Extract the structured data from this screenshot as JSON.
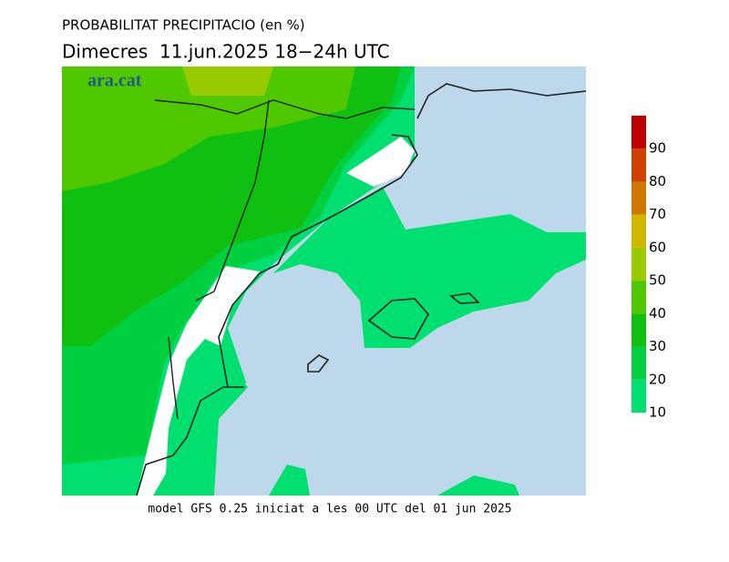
{
  "header": {
    "title": "PROBABILITAT PRECIPITACIO (en %)",
    "subtitle": "Dimecres  11.jun.2025 18−24h UTC"
  },
  "logo": "ara.cat",
  "footer": "model GFS 0.25 iniciat a les 00 UTC del 01 jun 2025",
  "legend": {
    "levels": [
      10,
      20,
      30,
      40,
      50,
      60,
      70,
      80,
      90
    ],
    "colors": [
      "#00e070",
      "#00d040",
      "#10c010",
      "#50c800",
      "#99cc00",
      "#d0b800",
      "#d07800",
      "#d04000",
      "#c00000"
    ]
  }
}
